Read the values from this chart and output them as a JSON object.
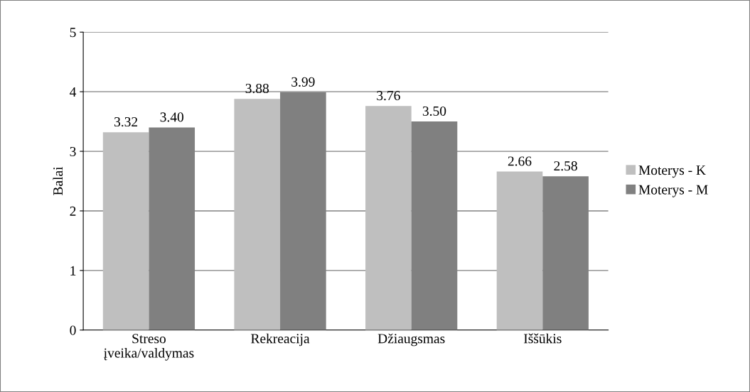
{
  "chart_data": {
    "type": "bar",
    "ylabel": "Balai",
    "categories": [
      "Streso\nįveika/valdymas",
      "Rekreacija",
      "Džiaugsmas",
      "Iššūkis"
    ],
    "series": [
      {
        "name": "Moterys - K",
        "color": "#bfbfbf",
        "values": [
          3.32,
          3.88,
          3.76,
          2.66
        ],
        "value_labels": [
          "3.32",
          "3.88",
          "3.76",
          "2.66"
        ]
      },
      {
        "name": "Moterys - M",
        "color": "#808080",
        "values": [
          3.4,
          3.99,
          3.5,
          2.58
        ],
        "value_labels": [
          "3.40",
          "3.99",
          "3.50",
          "2.58"
        ]
      }
    ],
    "ylim": [
      0,
      5
    ],
    "yticks": [
      0,
      1,
      2,
      3,
      4,
      5
    ],
    "grid": "y",
    "legend": "right"
  }
}
